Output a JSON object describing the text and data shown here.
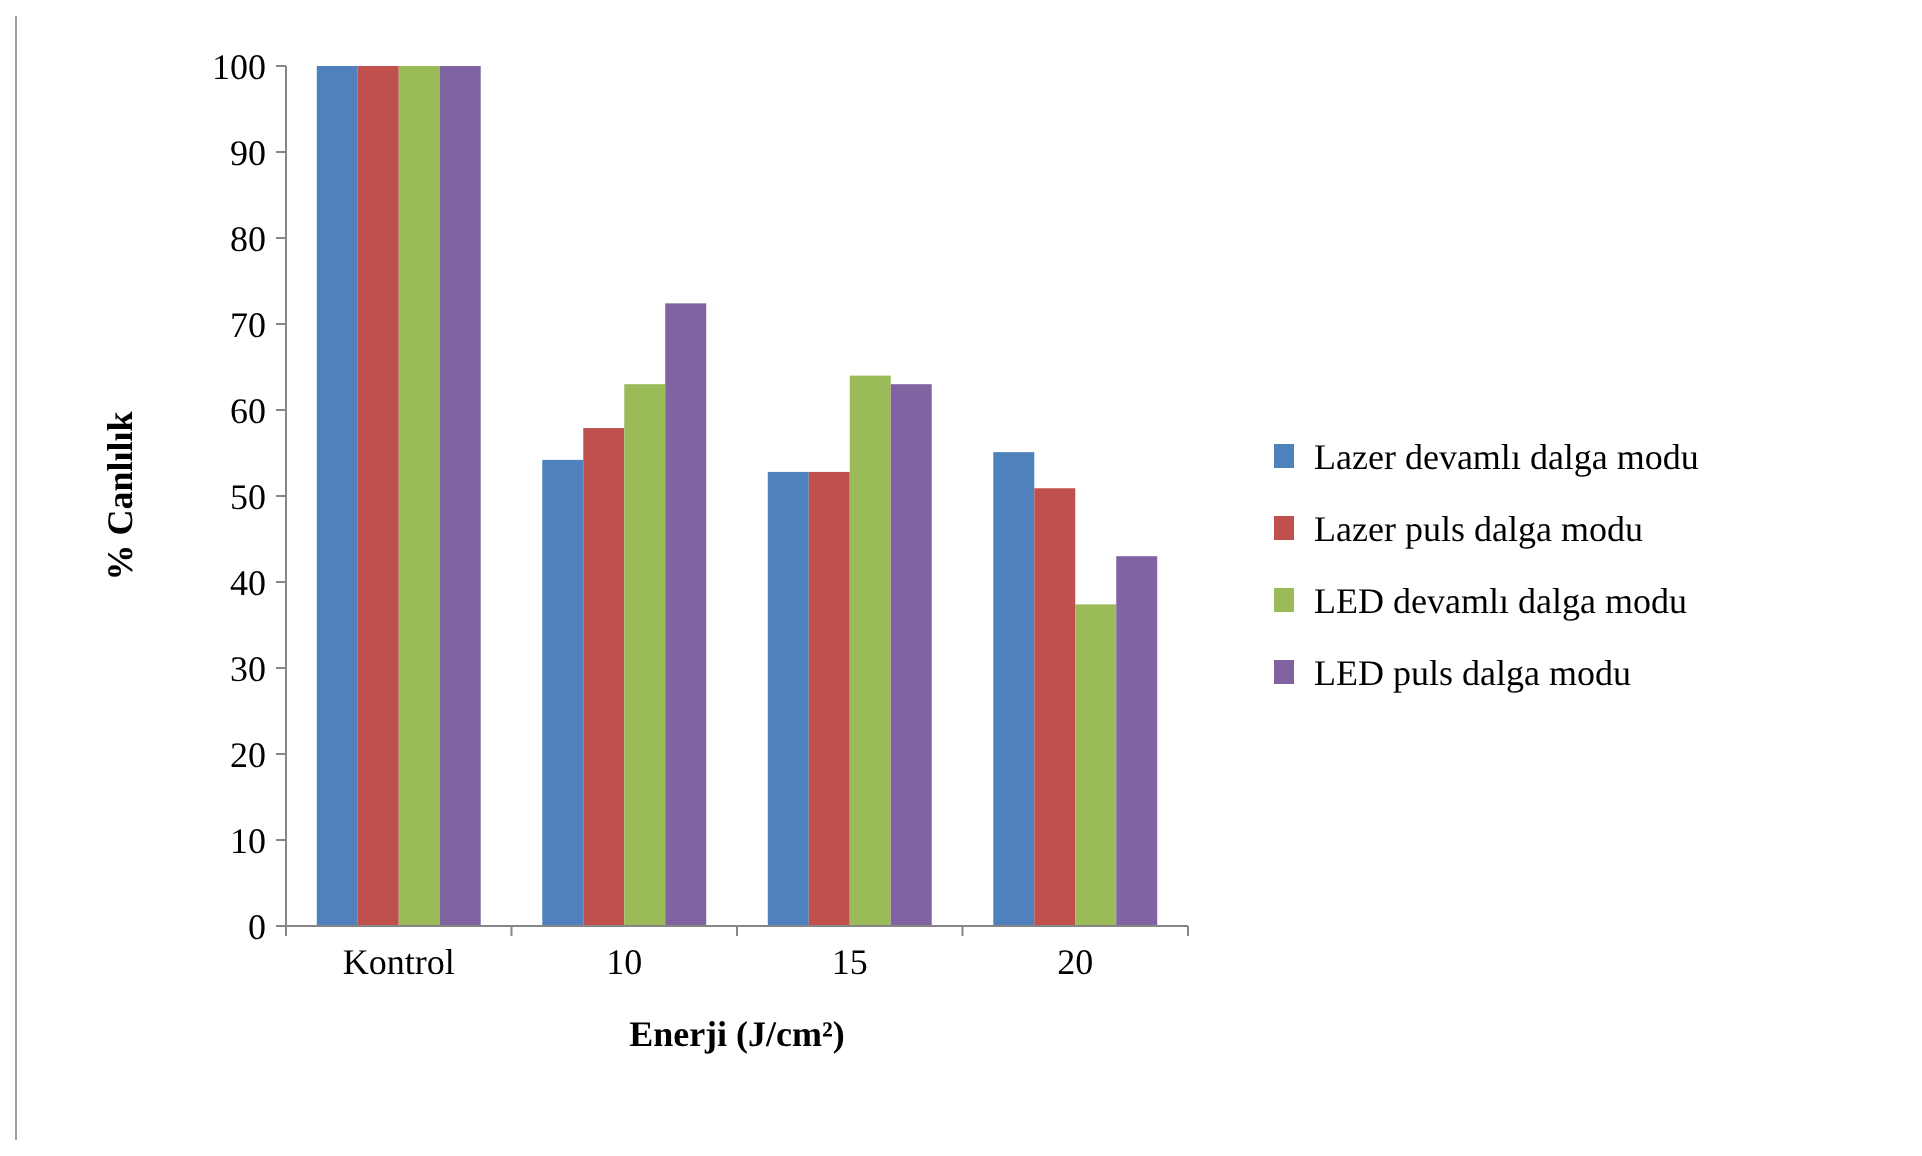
{
  "chart_data": {
    "type": "bar",
    "xlabel": "Enerji  (J/cm²)",
    "ylabel": "% Canlılık",
    "categories": [
      "Kontrol",
      "10",
      "15",
      "20"
    ],
    "series": [
      {
        "name": "Lazer devamlı dalga modu",
        "color": "#4f81bd",
        "values": [
          100,
          54.2,
          52.8,
          55.1
        ]
      },
      {
        "name": "Lazer puls dalga modu",
        "color": "#c0504d",
        "values": [
          100,
          57.9,
          52.8,
          50.9
        ]
      },
      {
        "name": "LED devamlı dalga modu",
        "color": "#9bbb59",
        "values": [
          100,
          63.0,
          64.0,
          37.4
        ]
      },
      {
        "name": "LED puls dalga modu",
        "color": "#8064a2",
        "values": [
          100,
          72.4,
          63.0,
          43.0
        ]
      }
    ],
    "ylim": [
      0,
      100
    ],
    "yticks": [
      0,
      10,
      20,
      30,
      40,
      50,
      60,
      70,
      80,
      90,
      100
    ],
    "grid": false,
    "legend": "right"
  }
}
